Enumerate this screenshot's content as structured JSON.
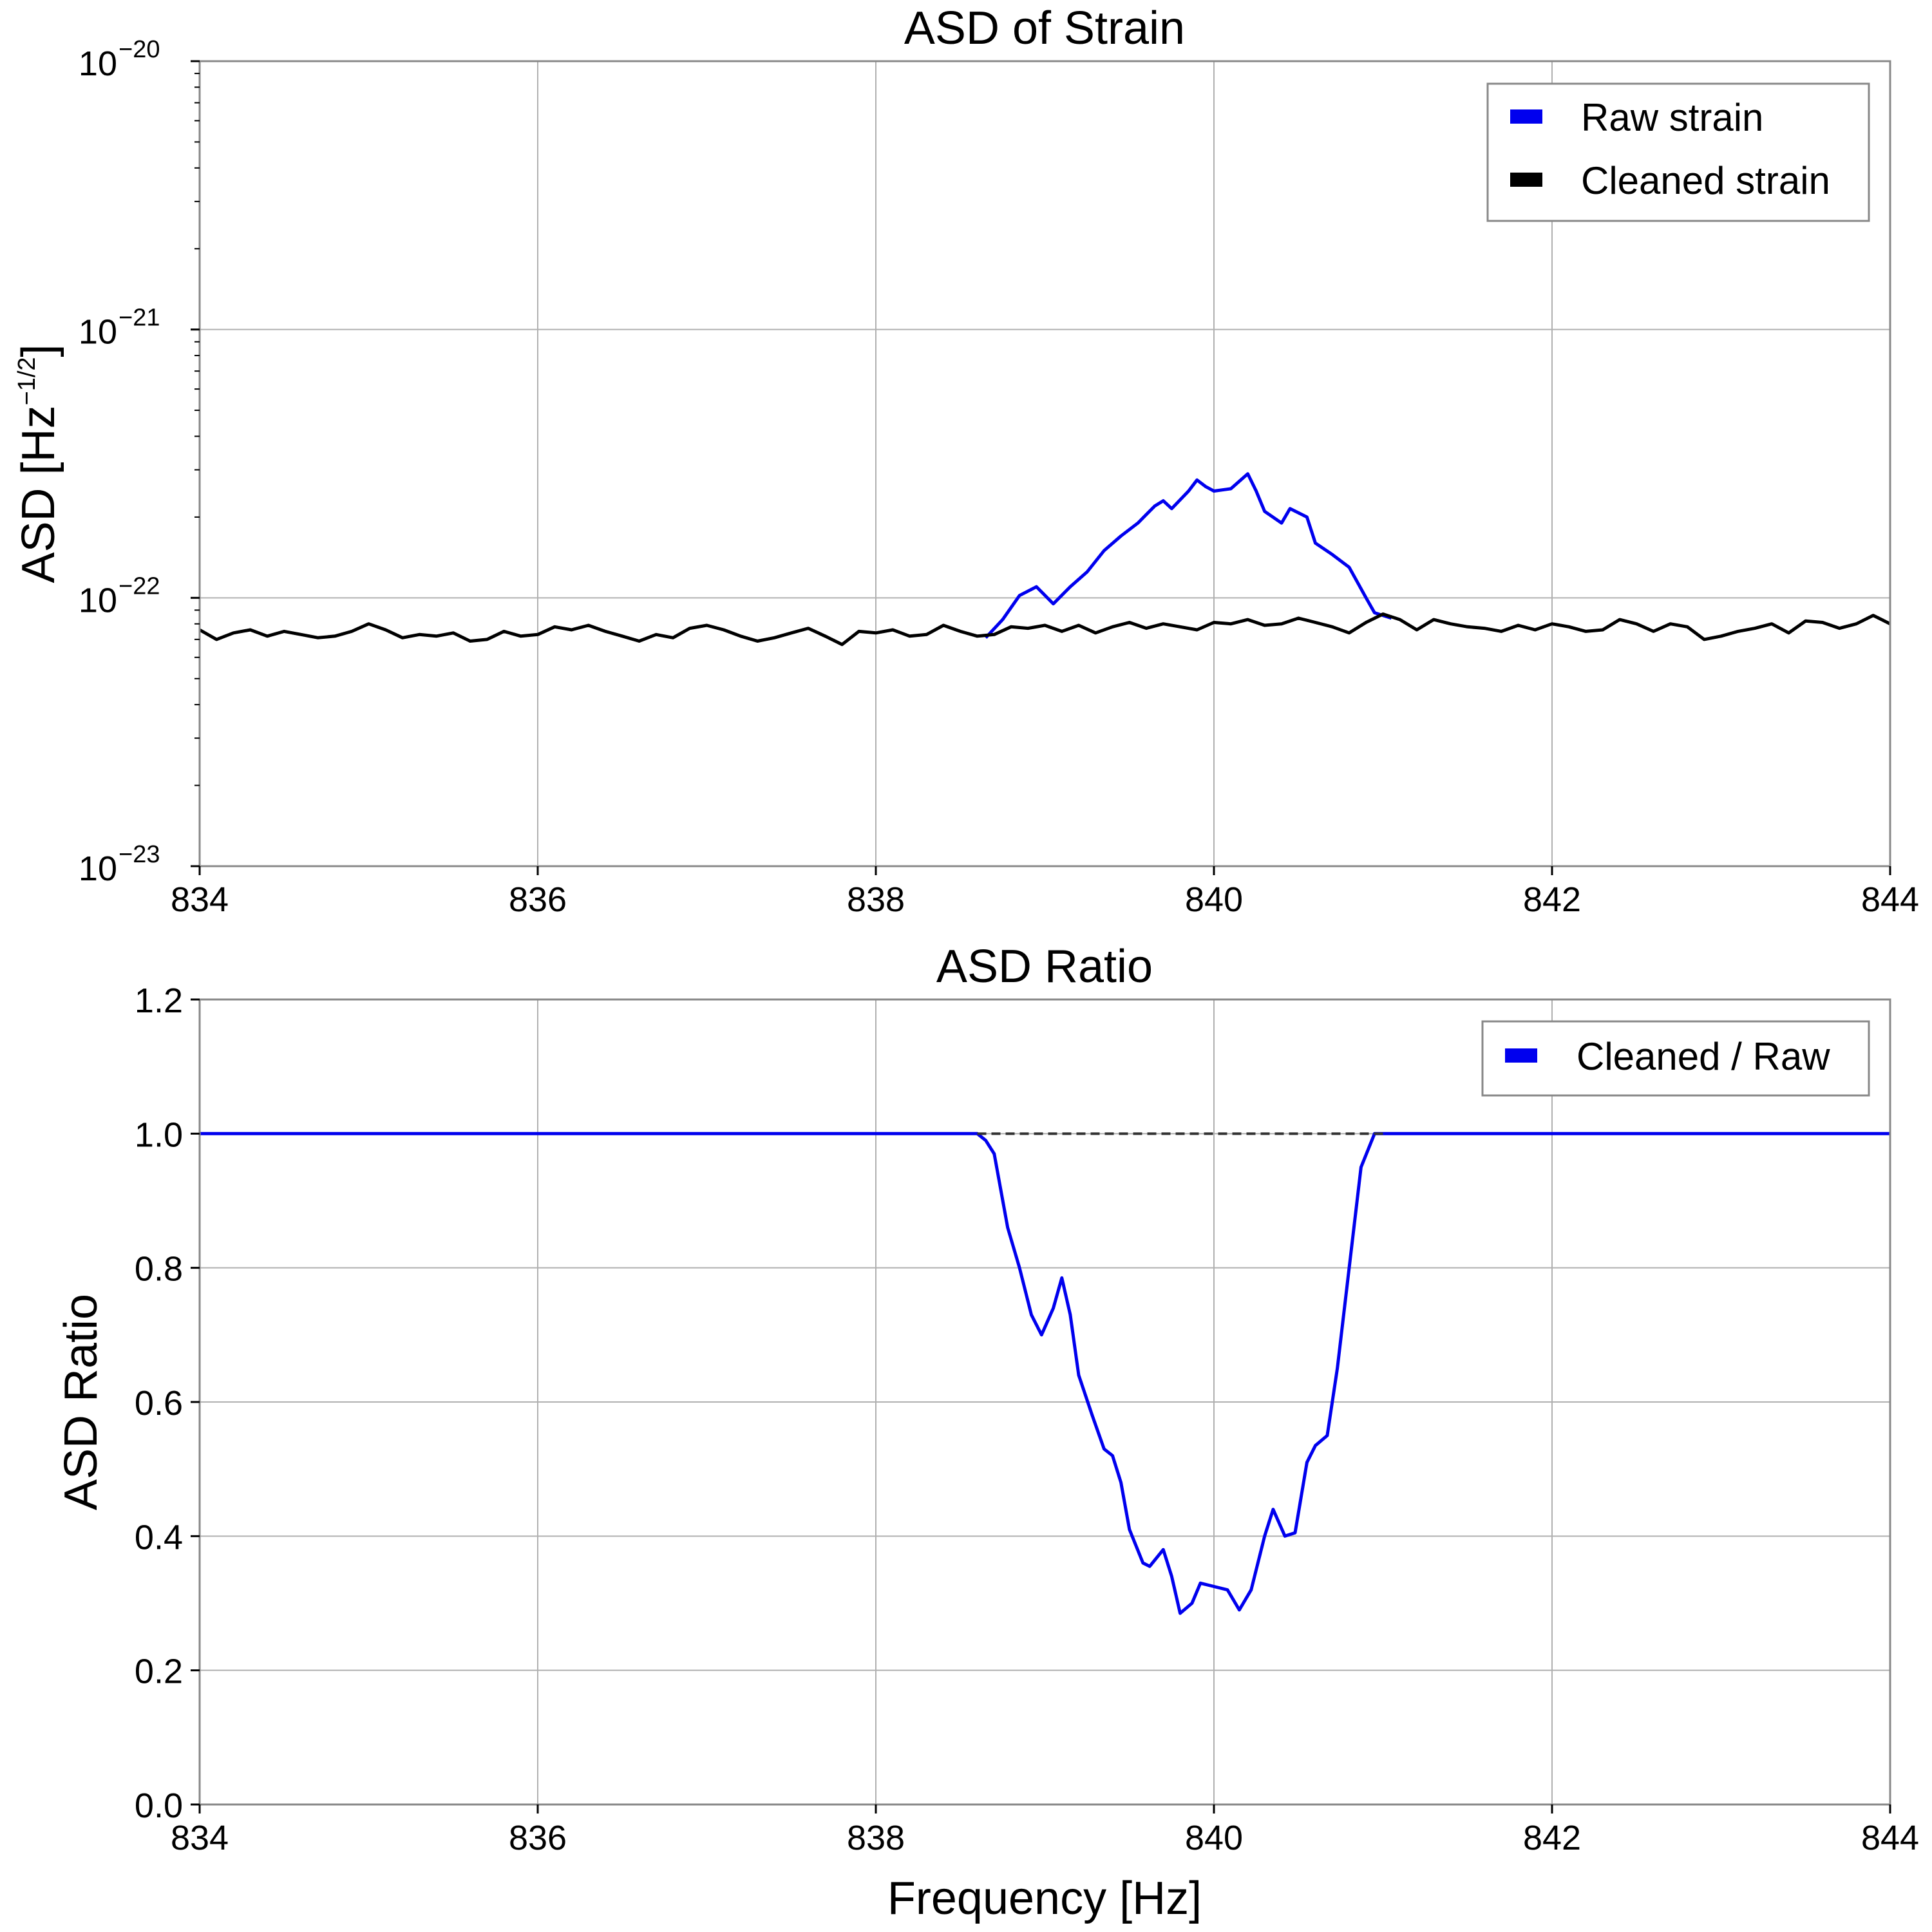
{
  "chart_data": [
    {
      "type": "line",
      "title": "ASD of Strain",
      "xlabel": "",
      "ylabel": "ASD [Hz",
      "ylabel_superscript": "−1/2",
      "ylabel_suffix": "]",
      "yscale": "log",
      "xlim": [
        834,
        844
      ],
      "ylim": [
        1e-23,
        1e-20
      ],
      "grid": true,
      "legend_position": "upper right",
      "xticks": [
        834,
        836,
        838,
        840,
        842,
        844
      ],
      "xtick_labels": [
        "834",
        "836",
        "838",
        "840",
        "842",
        "844"
      ],
      "yticks": [
        {
          "value": 1e-20,
          "base": "10",
          "exp": "−20"
        },
        {
          "value": 1e-21,
          "base": "10",
          "exp": "−21"
        },
        {
          "value": 1e-22,
          "base": "10",
          "exp": "−22"
        },
        {
          "value": 1e-23,
          "base": "10",
          "exp": "−23"
        }
      ],
      "series": [
        {
          "name": "Raw strain",
          "color": "#0000ee",
          "points": [
            [
              838.65,
              7.1e-23
            ],
            [
              838.75,
              8.3e-23
            ],
            [
              838.85,
              1.02e-22
            ],
            [
              838.95,
              1.1e-22
            ],
            [
              839.05,
              9.5e-23
            ],
            [
              839.15,
              1.1e-22
            ],
            [
              839.25,
              1.25e-22
            ],
            [
              839.35,
              1.5e-22
            ],
            [
              839.45,
              1.7e-22
            ],
            [
              839.55,
              1.9e-22
            ],
            [
              839.65,
              2.2e-22
            ],
            [
              839.7,
              2.3e-22
            ],
            [
              839.75,
              2.15e-22
            ],
            [
              839.85,
              2.5e-22
            ],
            [
              839.9,
              2.75e-22
            ],
            [
              839.95,
              2.6e-22
            ],
            [
              840.0,
              2.5e-22
            ],
            [
              840.1,
              2.55e-22
            ],
            [
              840.2,
              2.9e-22
            ],
            [
              840.25,
              2.5e-22
            ],
            [
              840.3,
              2.1e-22
            ],
            [
              840.4,
              1.9e-22
            ],
            [
              840.45,
              2.15e-22
            ],
            [
              840.55,
              2e-22
            ],
            [
              840.6,
              1.6e-22
            ],
            [
              840.7,
              1.45e-22
            ],
            [
              840.8,
              1.3e-22
            ],
            [
              840.9,
              1e-22
            ],
            [
              840.95,
              8.8e-23
            ],
            [
              841.05,
              8.4e-23
            ]
          ]
        },
        {
          "name": "Cleaned strain",
          "color": "#000000",
          "points": [
            [
              834.0,
              7.6e-23
            ],
            [
              834.1,
              7e-23
            ],
            [
              834.2,
              7.4e-23
            ],
            [
              834.3,
              7.6e-23
            ],
            [
              834.4,
              7.2e-23
            ],
            [
              834.5,
              7.5e-23
            ],
            [
              834.6,
              7.3e-23
            ],
            [
              834.7,
              7.1e-23
            ],
            [
              834.8,
              7.2e-23
            ],
            [
              834.9,
              7.5e-23
            ],
            [
              835.0,
              8e-23
            ],
            [
              835.1,
              7.6e-23
            ],
            [
              835.2,
              7.1e-23
            ],
            [
              835.3,
              7.3e-23
            ],
            [
              835.4,
              7.2e-23
            ],
            [
              835.5,
              7.4e-23
            ],
            [
              835.6,
              6.9e-23
            ],
            [
              835.7,
              7e-23
            ],
            [
              835.8,
              7.5e-23
            ],
            [
              835.9,
              7.2e-23
            ],
            [
              836.0,
              7.3e-23
            ],
            [
              836.1,
              7.8e-23
            ],
            [
              836.2,
              7.6e-23
            ],
            [
              836.3,
              7.9e-23
            ],
            [
              836.4,
              7.5e-23
            ],
            [
              836.5,
              7.2e-23
            ],
            [
              836.6,
              6.9e-23
            ],
            [
              836.7,
              7.3e-23
            ],
            [
              836.8,
              7.1e-23
            ],
            [
              836.9,
              7.7e-23
            ],
            [
              837.0,
              7.9e-23
            ],
            [
              837.1,
              7.6e-23
            ],
            [
              837.2,
              7.2e-23
            ],
            [
              837.3,
              6.9e-23
            ],
            [
              837.4,
              7.1e-23
            ],
            [
              837.5,
              7.4e-23
            ],
            [
              837.6,
              7.7e-23
            ],
            [
              837.7,
              7.2e-23
            ],
            [
              837.8,
              6.7e-23
            ],
            [
              837.9,
              7.5e-23
            ],
            [
              838.0,
              7.4e-23
            ],
            [
              838.1,
              7.6e-23
            ],
            [
              838.2,
              7.2e-23
            ],
            [
              838.3,
              7.3e-23
            ],
            [
              838.4,
              7.9e-23
            ],
            [
              838.5,
              7.5e-23
            ],
            [
              838.6,
              7.2e-23
            ],
            [
              838.7,
              7.3e-23
            ],
            [
              838.8,
              7.8e-23
            ],
            [
              838.9,
              7.7e-23
            ],
            [
              839.0,
              7.9e-23
            ],
            [
              839.1,
              7.5e-23
            ],
            [
              839.2,
              7.9e-23
            ],
            [
              839.3,
              7.4e-23
            ],
            [
              839.4,
              7.8e-23
            ],
            [
              839.5,
              8.1e-23
            ],
            [
              839.6,
              7.7e-23
            ],
            [
              839.7,
              8e-23
            ],
            [
              839.8,
              7.8e-23
            ],
            [
              839.9,
              7.6e-23
            ],
            [
              840.0,
              8.1e-23
            ],
            [
              840.1,
              8e-23
            ],
            [
              840.2,
              8.3e-23
            ],
            [
              840.3,
              7.9e-23
            ],
            [
              840.4,
              8e-23
            ],
            [
              840.5,
              8.4e-23
            ],
            [
              840.6,
              8.1e-23
            ],
            [
              840.7,
              7.8e-23
            ],
            [
              840.8,
              7.4e-23
            ],
            [
              840.9,
              8.1e-23
            ],
            [
              841.0,
              8.7e-23
            ],
            [
              841.1,
              8.3e-23
            ],
            [
              841.2,
              7.6e-23
            ],
            [
              841.3,
              8.3e-23
            ],
            [
              841.4,
              8e-23
            ],
            [
              841.5,
              7.8e-23
            ],
            [
              841.6,
              7.7e-23
            ],
            [
              841.7,
              7.5e-23
            ],
            [
              841.8,
              7.9e-23
            ],
            [
              841.9,
              7.6e-23
            ],
            [
              842.0,
              8e-23
            ],
            [
              842.1,
              7.8e-23
            ],
            [
              842.2,
              7.5e-23
            ],
            [
              842.3,
              7.6e-23
            ],
            [
              842.4,
              8.3e-23
            ],
            [
              842.5,
              8e-23
            ],
            [
              842.6,
              7.5e-23
            ],
            [
              842.7,
              8e-23
            ],
            [
              842.8,
              7.8e-23
            ],
            [
              842.9,
              7e-23
            ],
            [
              843.0,
              7.2e-23
            ],
            [
              843.1,
              7.5e-23
            ],
            [
              843.2,
              7.7e-23
            ],
            [
              843.3,
              8e-23
            ],
            [
              843.4,
              7.4e-23
            ],
            [
              843.5,
              8.2e-23
            ],
            [
              843.6,
              8.1e-23
            ],
            [
              843.7,
              7.7e-23
            ],
            [
              843.8,
              8e-23
            ],
            [
              843.9,
              8.6e-23
            ],
            [
              844.0,
              8e-23
            ]
          ]
        }
      ]
    },
    {
      "type": "line",
      "title": "ASD Ratio",
      "xlabel": "Frequency [Hz]",
      "ylabel": "ASD Ratio",
      "xlim": [
        834,
        844
      ],
      "ylim": [
        0.0,
        1.2
      ],
      "grid": true,
      "legend_position": "upper right",
      "xticks": [
        834,
        836,
        838,
        840,
        842,
        844
      ],
      "xtick_labels": [
        "834",
        "836",
        "838",
        "840",
        "842",
        "844"
      ],
      "yticks": [
        0.0,
        0.2,
        0.4,
        0.6,
        0.8,
        1.0,
        1.2
      ],
      "ytick_labels": [
        "0.0",
        "0.2",
        "0.4",
        "0.6",
        "0.8",
        "1.0",
        "1.2"
      ],
      "reference_line": {
        "y": 1.0,
        "from": 838.6,
        "to": 841.0,
        "style": "dashed",
        "color": "#333333"
      },
      "series": [
        {
          "name": "Cleaned / Raw",
          "color": "#0000ee",
          "points": [
            [
              834.0,
              1.0
            ],
            [
              838.6,
              1.0
            ],
            [
              838.65,
              0.99
            ],
            [
              838.7,
              0.97
            ],
            [
              838.78,
              0.86
            ],
            [
              838.85,
              0.8
            ],
            [
              838.92,
              0.73
            ],
            [
              838.98,
              0.7
            ],
            [
              839.05,
              0.74
            ],
            [
              839.1,
              0.785
            ],
            [
              839.15,
              0.73
            ],
            [
              839.2,
              0.64
            ],
            [
              839.28,
              0.58
            ],
            [
              839.35,
              0.53
            ],
            [
              839.4,
              0.52
            ],
            [
              839.45,
              0.48
            ],
            [
              839.5,
              0.41
            ],
            [
              839.58,
              0.36
            ],
            [
              839.62,
              0.355
            ],
            [
              839.7,
              0.38
            ],
            [
              839.75,
              0.34
            ],
            [
              839.8,
              0.285
            ],
            [
              839.87,
              0.3
            ],
            [
              839.92,
              0.33
            ],
            [
              840.0,
              0.325
            ],
            [
              840.08,
              0.32
            ],
            [
              840.15,
              0.29
            ],
            [
              840.22,
              0.32
            ],
            [
              840.3,
              0.4
            ],
            [
              840.35,
              0.44
            ],
            [
              840.42,
              0.4
            ],
            [
              840.48,
              0.405
            ],
            [
              840.55,
              0.51
            ],
            [
              840.6,
              0.535
            ],
            [
              840.67,
              0.55
            ],
            [
              840.73,
              0.65
            ],
            [
              840.8,
              0.8
            ],
            [
              840.87,
              0.95
            ],
            [
              840.95,
              1.0
            ],
            [
              841.0,
              1.0
            ],
            [
              844.0,
              1.0
            ]
          ]
        }
      ]
    }
  ]
}
